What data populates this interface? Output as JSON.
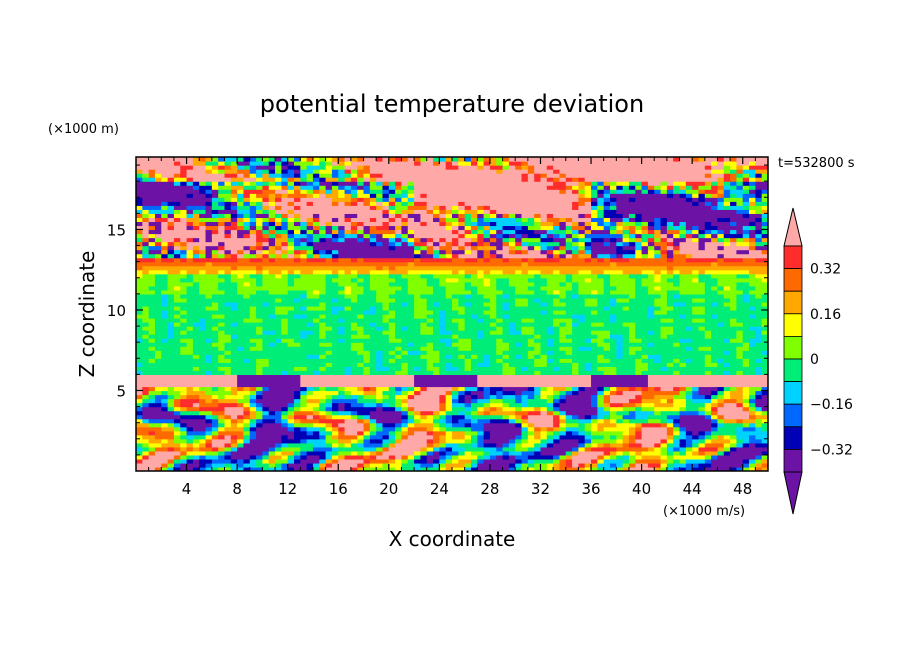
{
  "chart_data": {
    "type": "heatmap",
    "title": "potential temperature deviation",
    "xlabel": "X coordinate",
    "ylabel": "Z coordinate",
    "x_unit": "(×1000 m/s)",
    "y_unit": "(×1000 m)",
    "time_label": "t=532800 s",
    "xlim": [
      0,
      50
    ],
    "ylim": [
      0,
      19.5
    ],
    "x_ticks": [
      4,
      8,
      12,
      16,
      20,
      24,
      28,
      32,
      36,
      40,
      44,
      48
    ],
    "y_ticks": [
      5,
      10,
      15
    ],
    "colorbar": {
      "levels": [
        -0.4,
        -0.32,
        -0.24,
        -0.16,
        -0.08,
        0,
        0.08,
        0.16,
        0.24,
        0.32,
        0.4
      ],
      "labels": [
        "0.32",
        "0.16",
        "0",
        "−0.16",
        "−0.32"
      ],
      "label_values": [
        0.32,
        0.16,
        0,
        -0.16,
        -0.32
      ],
      "colors": [
        "#ffa8a8",
        "#ff2c2c",
        "#ff6a00",
        "#ffa800",
        "#ffff00",
        "#7fff00",
        "#00ee78",
        "#00d2ff",
        "#0068ff",
        "#0000b4",
        "#6c12a4",
        "#6c12a4"
      ],
      "extend": "both"
    },
    "layers": [
      {
        "z": [
          13.2,
          19.5
        ],
        "dominant": [
          0.4,
          -0.4,
          0.0
        ]
      },
      {
        "z": [
          12.2,
          13.6
        ],
        "dominant": [
          0.32,
          0.24,
          0.16
        ]
      },
      {
        "z": [
          6.0,
          12.2
        ],
        "dominant": [
          0.0,
          -0.08
        ]
      },
      {
        "z": [
          5.2,
          6.0
        ],
        "dominant": [
          0.4,
          -0.4
        ]
      },
      {
        "z": [
          0.0,
          5.2
        ],
        "dominant": [
          0.4,
          0.24,
          0.08,
          -0.08,
          -0.24,
          -0.4
        ]
      }
    ]
  }
}
